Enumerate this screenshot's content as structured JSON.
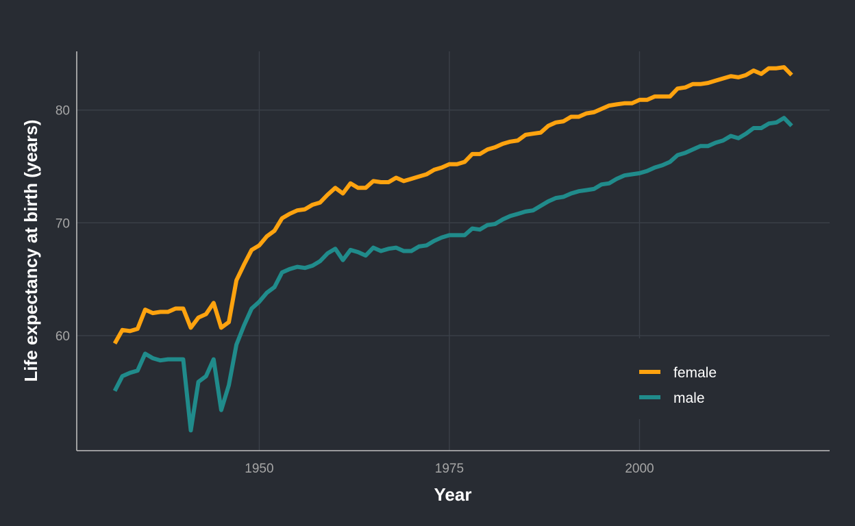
{
  "chart_data": {
    "type": "line",
    "title": "",
    "xlabel": "Year",
    "ylabel": "Life expectancy at birth (years)",
    "xlim": [
      1926,
      2025
    ],
    "ylim": [
      49.8,
      85.2
    ],
    "x_ticks": [
      {
        "value": 1950,
        "label": "1950"
      },
      {
        "value": 1975,
        "label": "1975"
      },
      {
        "value": 2000,
        "label": "2000"
      }
    ],
    "y_ticks": [
      {
        "value": 60,
        "label": "60"
      },
      {
        "value": 70,
        "label": "70"
      },
      {
        "value": 80,
        "label": "80"
      }
    ],
    "grid": true,
    "legend_position": "bottom-right",
    "x": [
      1931,
      1932,
      1933,
      1934,
      1935,
      1936,
      1937,
      1938,
      1939,
      1940,
      1941,
      1942,
      1943,
      1944,
      1945,
      1946,
      1947,
      1948,
      1949,
      1950,
      1951,
      1952,
      1953,
      1954,
      1955,
      1956,
      1957,
      1958,
      1959,
      1960,
      1961,
      1962,
      1963,
      1964,
      1965,
      1966,
      1967,
      1968,
      1969,
      1970,
      1971,
      1972,
      1973,
      1974,
      1975,
      1976,
      1977,
      1978,
      1979,
      1980,
      1981,
      1982,
      1983,
      1984,
      1985,
      1986,
      1987,
      1988,
      1989,
      1990,
      1991,
      1992,
      1993,
      1994,
      1995,
      1996,
      1997,
      1998,
      1999,
      2000,
      2001,
      2002,
      2003,
      2004,
      2005,
      2006,
      2007,
      2008,
      2009,
      2010,
      2011,
      2012,
      2013,
      2014,
      2015,
      2016,
      2017,
      2018,
      2019,
      2020
    ],
    "series": [
      {
        "name": "female",
        "color": "#ffa30f",
        "values": [
          59.3,
          60.5,
          60.4,
          60.6,
          62.3,
          62.0,
          62.1,
          62.1,
          62.4,
          62.4,
          60.7,
          61.6,
          61.9,
          62.9,
          60.7,
          61.2,
          64.9,
          66.3,
          67.6,
          68.0,
          68.8,
          69.3,
          70.4,
          70.8,
          71.1,
          71.2,
          71.6,
          71.8,
          72.5,
          73.1,
          72.6,
          73.5,
          73.1,
          73.1,
          73.7,
          73.6,
          73.6,
          74.0,
          73.7,
          73.9,
          74.1,
          74.3,
          74.7,
          74.9,
          75.2,
          75.2,
          75.4,
          76.1,
          76.1,
          76.5,
          76.7,
          77.0,
          77.2,
          77.3,
          77.8,
          77.9,
          78.0,
          78.6,
          78.9,
          79.0,
          79.4,
          79.4,
          79.7,
          79.8,
          80.1,
          80.4,
          80.5,
          80.6,
          80.6,
          80.9,
          80.9,
          81.2,
          81.2,
          81.2,
          81.9,
          82.0,
          82.3,
          82.3,
          82.4,
          82.6,
          82.8,
          83.0,
          82.9,
          83.1,
          83.5,
          83.2,
          83.7,
          83.7,
          83.8,
          83.1
        ]
      },
      {
        "name": "male",
        "color": "#208b8b",
        "values": [
          55.1,
          56.4,
          56.7,
          56.9,
          58.4,
          58.0,
          57.8,
          57.9,
          57.9,
          57.9,
          51.6,
          55.9,
          56.4,
          57.9,
          53.4,
          55.6,
          59.2,
          60.9,
          62.4,
          63.0,
          63.8,
          64.3,
          65.6,
          65.9,
          66.1,
          66.0,
          66.2,
          66.6,
          67.3,
          67.7,
          66.7,
          67.6,
          67.4,
          67.1,
          67.8,
          67.5,
          67.7,
          67.8,
          67.5,
          67.5,
          67.9,
          68.0,
          68.4,
          68.7,
          68.9,
          68.9,
          68.9,
          69.5,
          69.4,
          69.8,
          69.9,
          70.3,
          70.6,
          70.8,
          71.0,
          71.1,
          71.5,
          71.9,
          72.2,
          72.3,
          72.6,
          72.8,
          72.9,
          73.0,
          73.4,
          73.5,
          73.9,
          74.2,
          74.3,
          74.4,
          74.6,
          74.9,
          75.1,
          75.4,
          76.0,
          76.2,
          76.5,
          76.8,
          76.8,
          77.1,
          77.3,
          77.7,
          77.5,
          77.9,
          78.4,
          78.4,
          78.8,
          78.9,
          79.3,
          78.6
        ]
      }
    ]
  }
}
